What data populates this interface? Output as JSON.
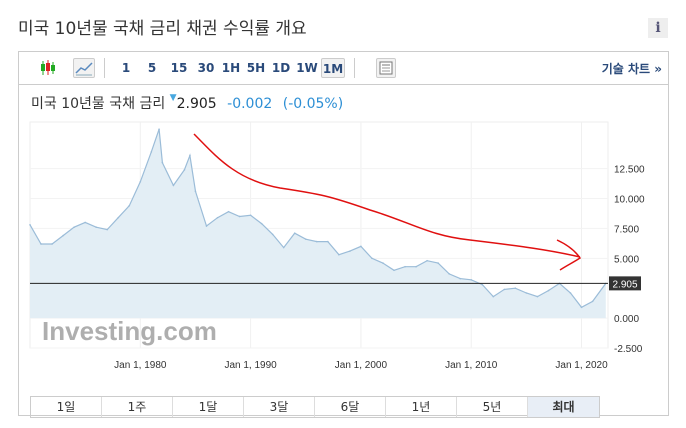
{
  "header": {
    "title": "미국 10년물 국채 금리  채권 수익률 개요",
    "info_icon": "info-icon"
  },
  "toolbar": {
    "intervals": [
      "1",
      "5",
      "15",
      "30",
      "1H",
      "5H",
      "1D",
      "1W",
      "1M"
    ],
    "selected_interval": "1M",
    "tech_chart": "기술 차트 »"
  },
  "quote": {
    "name": "미국 10년물 국채 금리",
    "price": "2.905",
    "change": "-0.002",
    "change_pct": "(-0.05%)",
    "direction": "down"
  },
  "ranges": {
    "items": [
      "1일",
      "1주",
      "1달",
      "3달",
      "6달",
      "1년",
      "5년",
      "최대"
    ],
    "selected": "최대"
  },
  "watermark": "Investing.com",
  "colors": {
    "line": "#9bbcd8",
    "fill": "#e3eef5",
    "annotation": "#e01010",
    "price_tag": "#333333"
  },
  "chart_data": {
    "type": "area",
    "x": [
      1970,
      1971,
      1972,
      1973,
      1974,
      1975,
      1976,
      1977,
      1978,
      1979,
      1980,
      1981,
      1981.7,
      1982,
      1983,
      1984,
      1984.5,
      1985,
      1986,
      1987,
      1988,
      1989,
      1990,
      1991,
      1992,
      1993,
      1994,
      1995,
      1996,
      1997,
      1998,
      1999,
      2000,
      2001,
      2002,
      2003,
      2004,
      2005,
      2006,
      2007,
      2008,
      2009,
      2010,
      2011,
      2012,
      2013,
      2014,
      2015,
      2016,
      2017,
      2018,
      2019,
      2020,
      2021,
      2022.2
    ],
    "values": [
      7.8,
      6.2,
      6.2,
      6.9,
      7.6,
      8.0,
      7.6,
      7.4,
      8.4,
      9.4,
      11.4,
      13.9,
      15.8,
      13.0,
      11.1,
      12.4,
      13.6,
      10.6,
      7.7,
      8.4,
      8.9,
      8.5,
      8.6,
      7.9,
      7.0,
      5.9,
      7.1,
      6.6,
      6.4,
      6.4,
      5.3,
      5.6,
      6.0,
      5.0,
      4.6,
      4.0,
      4.3,
      4.3,
      4.8,
      4.6,
      3.7,
      3.3,
      3.2,
      2.8,
      1.8,
      2.4,
      2.5,
      2.1,
      1.8,
      2.3,
      2.9,
      2.1,
      0.9,
      1.4,
      2.905
    ],
    "y_ticks": [
      "12.500",
      "10.000",
      "7.500",
      "5.000",
      "0.000",
      "-2.500"
    ],
    "x_ticks": [
      "Jan 1, 1980",
      "Jan 1, 1990",
      "Jan 1, 2000",
      "Jan 1, 2010",
      "Jan 1, 2020"
    ],
    "ylim": [
      -2.5,
      16.4
    ],
    "xlim": [
      1970,
      2022.4
    ],
    "current_label": "2.905",
    "grid": true
  }
}
